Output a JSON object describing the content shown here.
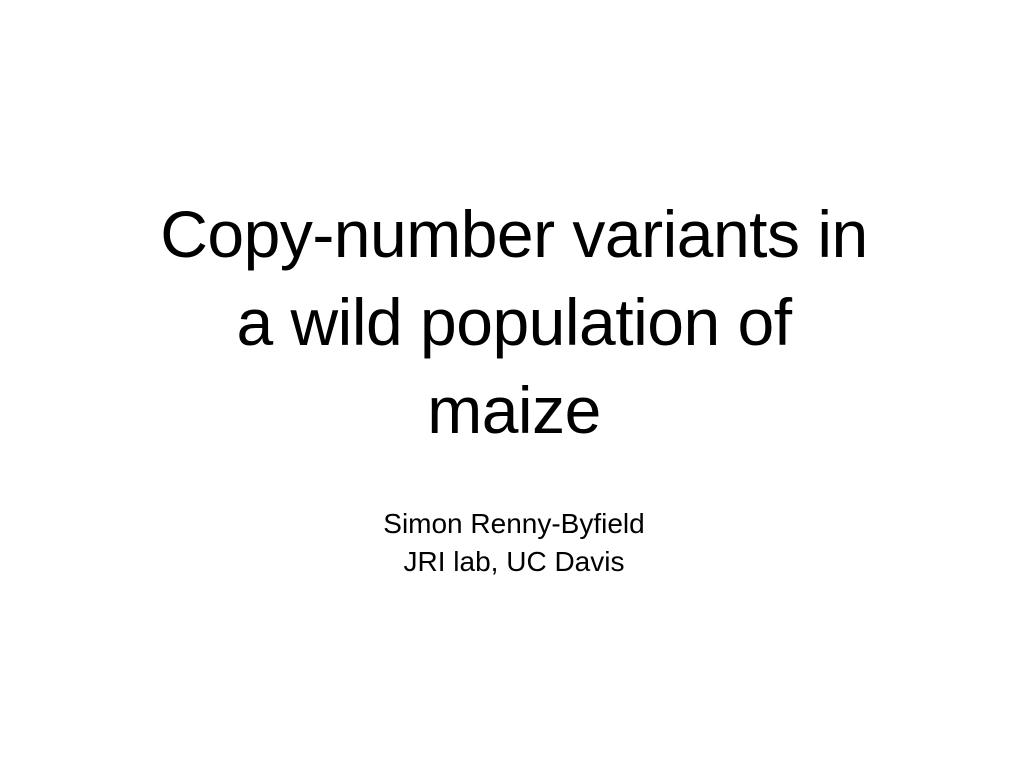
{
  "slide": {
    "title_lines": [
      "Copy-number variants in",
      "a wild population of",
      "maize"
    ],
    "author": "Simon Renny-Byfield",
    "affiliation": "JRI lab, UC Davis"
  }
}
